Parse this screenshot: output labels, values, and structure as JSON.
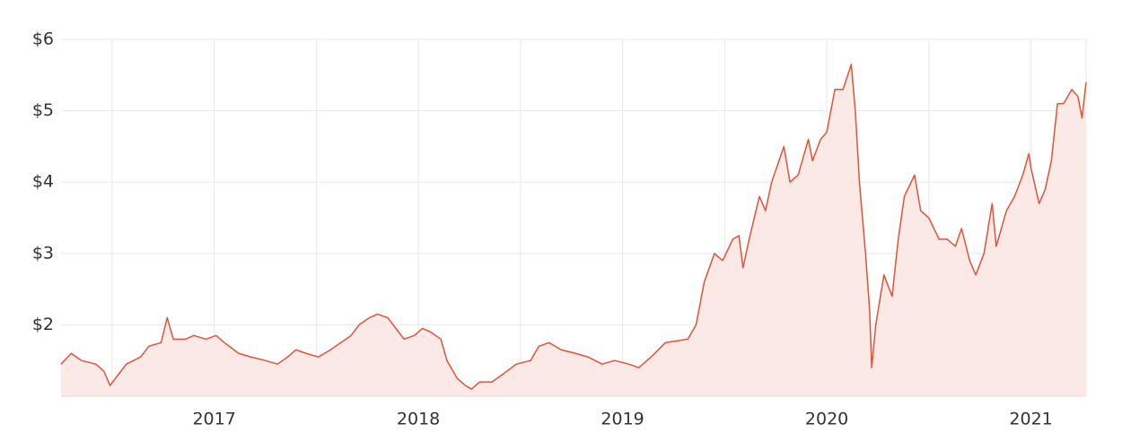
{
  "chart_data": {
    "type": "area",
    "color": "#e0533a",
    "fill_color": "#fbe9e6",
    "grid": true,
    "xlim": [
      2016.25,
      2021.27
    ],
    "xticks": [
      2017,
      2018,
      2019,
      2020,
      2021
    ],
    "x_minor_grid": [
      2016.5,
      2017.5,
      2018.5,
      2019.5,
      2020.5
    ],
    "ylim": [
      1,
      6
    ],
    "yticks": [
      {
        "value": 2,
        "label": "$2"
      },
      {
        "value": 3,
        "label": "$3"
      },
      {
        "value": 4,
        "label": "$4"
      },
      {
        "value": 5,
        "label": "$5"
      },
      {
        "value": 6,
        "label": "$6"
      }
    ],
    "x": [
      2016.25,
      2016.3,
      2016.35,
      2016.42,
      2016.46,
      2016.49,
      2016.53,
      2016.57,
      2016.64,
      2016.68,
      2016.74,
      2016.77,
      2016.8,
      2016.86,
      2016.9,
      2016.96,
      2017.01,
      2017.05,
      2017.12,
      2017.18,
      2017.25,
      2017.31,
      2017.36,
      2017.4,
      2017.45,
      2017.51,
      2017.57,
      2017.62,
      2017.67,
      2017.71,
      2017.76,
      2017.8,
      2017.85,
      2017.89,
      2017.93,
      2017.98,
      2018.02,
      2018.06,
      2018.11,
      2018.14,
      2018.19,
      2018.23,
      2018.26,
      2018.3,
      2018.36,
      2018.41,
      2018.48,
      2018.55,
      2018.59,
      2018.64,
      2018.7,
      2018.77,
      2018.83,
      2018.9,
      2018.96,
      2019.03,
      2019.08,
      2019.14,
      2019.21,
      2019.32,
      2019.36,
      2019.4,
      2019.45,
      2019.49,
      2019.54,
      2019.57,
      2019.59,
      2019.62,
      2019.67,
      2019.7,
      2019.73,
      2019.79,
      2019.82,
      2019.86,
      2019.91,
      2019.93,
      2019.97,
      2020.0,
      2020.04,
      2020.08,
      2020.12,
      2020.14,
      2020.16,
      2020.19,
      2020.21,
      2020.22,
      2020.24,
      2020.28,
      2020.32,
      2020.35,
      2020.38,
      2020.43,
      2020.46,
      2020.5,
      2020.55,
      2020.59,
      2020.63,
      2020.66,
      2020.7,
      2020.73,
      2020.77,
      2020.81,
      2020.83,
      2020.88,
      2020.92,
      2020.96,
      2020.99,
      2021.0,
      2021.04,
      2021.07,
      2021.1,
      2021.13,
      2021.16,
      2021.2,
      2021.23,
      2021.25,
      2021.27
    ],
    "values": [
      1.45,
      1.6,
      1.5,
      1.45,
      1.35,
      1.15,
      1.3,
      1.45,
      1.55,
      1.7,
      1.75,
      2.1,
      1.8,
      1.8,
      1.85,
      1.8,
      1.85,
      1.75,
      1.6,
      1.55,
      1.5,
      1.45,
      1.55,
      1.65,
      1.6,
      1.55,
      1.65,
      1.75,
      1.85,
      2.0,
      2.1,
      2.15,
      2.1,
      1.95,
      1.8,
      1.85,
      1.95,
      1.9,
      1.8,
      1.5,
      1.25,
      1.15,
      1.1,
      1.2,
      1.2,
      1.3,
      1.45,
      1.5,
      1.7,
      1.75,
      1.65,
      1.6,
      1.55,
      1.45,
      1.5,
      1.45,
      1.4,
      1.55,
      1.75,
      1.8,
      2.0,
      2.6,
      3.0,
      2.9,
      3.2,
      3.25,
      2.8,
      3.2,
      3.8,
      3.6,
      4.0,
      4.5,
      4.0,
      4.1,
      4.6,
      4.3,
      4.6,
      4.7,
      5.3,
      5.3,
      5.65,
      5.0,
      4.0,
      3.0,
      2.2,
      1.4,
      2.0,
      2.7,
      2.4,
      3.2,
      3.8,
      4.1,
      3.6,
      3.5,
      3.2,
      3.2,
      3.1,
      3.35,
      2.9,
      2.7,
      3.0,
      3.7,
      3.1,
      3.6,
      3.8,
      4.1,
      4.4,
      4.2,
      3.7,
      3.9,
      4.3,
      5.1,
      5.1,
      5.3,
      5.2,
      4.9,
      5.4
    ]
  }
}
